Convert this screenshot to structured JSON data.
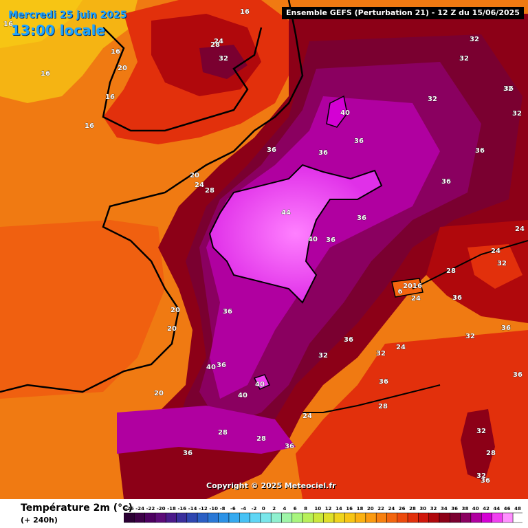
{
  "header": {
    "model": "Ensemble GEFS  (Perturbation 21)  -  12 Z du 15/06/2025",
    "date": "Mercredi 25 juin 2025",
    "time": "13:00 locale"
  },
  "copyright": "Copyright © 2025 Meteociel.fr",
  "legend": {
    "title": "Température 2m (°c)",
    "lead": "(+ 240h)",
    "ticks": [
      "-26",
      "-24",
      "-22",
      "-20",
      "-18",
      "-16",
      "-14",
      "-12",
      "-10",
      "-8",
      "-6",
      "-4",
      "-2",
      "0",
      "2",
      "4",
      "6",
      "8",
      "10",
      "12",
      "14",
      "16",
      "18",
      "20",
      "22",
      "24",
      "26",
      "28",
      "30",
      "32",
      "34",
      "36",
      "38",
      "40",
      "42",
      "44",
      "46",
      "48"
    ],
    "colors": [
      "#2b0033",
      "#3d0047",
      "#4d0060",
      "#5c0b78",
      "#4b1a8a",
      "#3a2f9c",
      "#2f46b0",
      "#2b5fc4",
      "#2a78d6",
      "#2c92e6",
      "#35aaf0",
      "#47c2f5",
      "#5fd6f5",
      "#79e6ea",
      "#8ff0cf",
      "#9ff5a8",
      "#a8f57e",
      "#b8f05a",
      "#cbe83c",
      "#dfe029",
      "#efd41c",
      "#f7c514",
      "#fbb111",
      "#fb9a10",
      "#f8800f",
      "#f3650e",
      "#ec4a0d",
      "#e2300c",
      "#d0170c",
      "#b0080c",
      "#8c0017",
      "#7a0030",
      "#8a0060",
      "#b000a0",
      "#d400d4",
      "#f040f0",
      "#ff90ff",
      "#ffffff"
    ]
  },
  "map_labels": [
    {
      "text": "16"
    },
    {
      "text": "16"
    },
    {
      "text": "16"
    },
    {
      "text": "20"
    },
    {
      "text": "16"
    },
    {
      "text": "16"
    },
    {
      "text": "16"
    },
    {
      "text": "24"
    },
    {
      "text": "28"
    },
    {
      "text": "32"
    },
    {
      "text": "32"
    },
    {
      "text": "32"
    },
    {
      "text": "36"
    },
    {
      "text": "32"
    },
    {
      "text": "32"
    },
    {
      "text": "36"
    },
    {
      "text": "36"
    },
    {
      "text": "36"
    },
    {
      "text": "40"
    },
    {
      "text": "36"
    },
    {
      "text": "36"
    },
    {
      "text": "32"
    },
    {
      "text": "20"
    },
    {
      "text": "24"
    },
    {
      "text": "28"
    },
    {
      "text": "44"
    },
    {
      "text": "40"
    },
    {
      "text": "36"
    },
    {
      "text": "36"
    },
    {
      "text": "24"
    },
    {
      "text": "24"
    },
    {
      "text": "32"
    },
    {
      "text": "28"
    },
    {
      "text": "2016"
    },
    {
      "text": "6"
    },
    {
      "text": "24"
    },
    {
      "text": "36"
    },
    {
      "text": "20"
    },
    {
      "text": "20"
    },
    {
      "text": "36"
    },
    {
      "text": "36"
    },
    {
      "text": "36"
    },
    {
      "text": "32"
    },
    {
      "text": "32"
    },
    {
      "text": "24"
    },
    {
      "text": "32"
    },
    {
      "text": "40"
    },
    {
      "text": "36"
    },
    {
      "text": "40"
    },
    {
      "text": "40"
    },
    {
      "text": "36"
    },
    {
      "text": "36"
    },
    {
      "text": "20"
    },
    {
      "text": "24"
    },
    {
      "text": "28"
    },
    {
      "text": "28"
    },
    {
      "text": "28"
    },
    {
      "text": "36"
    },
    {
      "text": "36"
    },
    {
      "text": "32"
    },
    {
      "text": "28"
    },
    {
      "text": "32"
    },
    {
      "text": "36"
    }
  ]
}
